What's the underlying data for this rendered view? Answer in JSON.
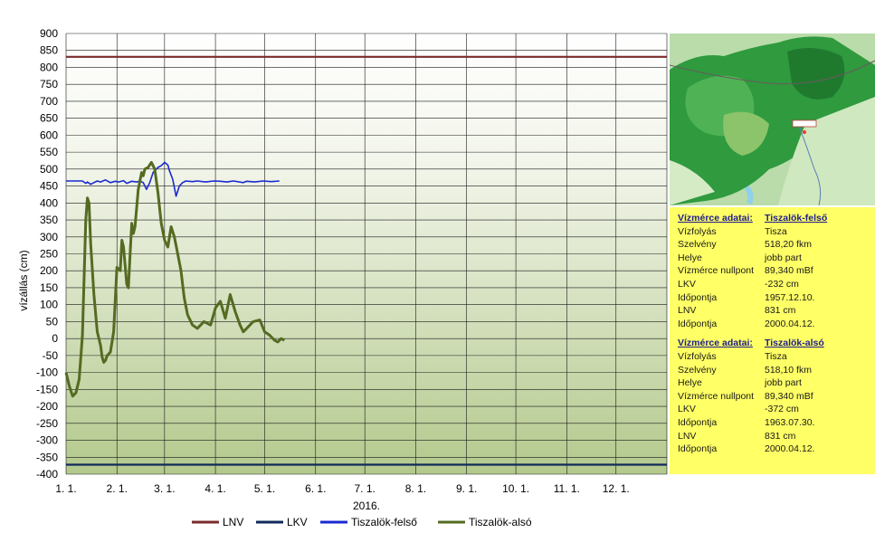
{
  "chart_data": {
    "type": "line",
    "xlabel": "2016.",
    "ylabel": "vízállás (cm)",
    "ylim": [
      -400,
      900
    ],
    "yticks": [
      900,
      850,
      800,
      750,
      700,
      650,
      600,
      550,
      500,
      450,
      400,
      350,
      300,
      250,
      200,
      150,
      100,
      50,
      0,
      -50,
      -100,
      -150,
      -200,
      -250,
      -300,
      -350,
      -400
    ],
    "xticks": [
      "1. 1.",
      "2. 1.",
      "3. 1.",
      "4. 1.",
      "5. 1.",
      "6. 1.",
      "7. 1.",
      "8. 1.",
      "9. 1.",
      "10. 1.",
      "11. 1.",
      "12. 1."
    ],
    "x_unit": "day of year 2016 (0 = Jan 1)",
    "grid": true,
    "legend_position": "bottom",
    "series": [
      {
        "name": "LNV",
        "color": "#7b2b2b",
        "x": [
          0,
          366
        ],
        "y": [
          831,
          831
        ]
      },
      {
        "name": "LKV",
        "color": "#102a5a",
        "x": [
          0,
          366
        ],
        "y": [
          -372,
          -372
        ]
      },
      {
        "name": "Tiszalök-felső",
        "color": "#1a2ad0",
        "x": [
          0,
          10,
          12,
          13,
          15,
          17,
          19,
          21,
          24,
          27,
          30,
          32,
          35,
          37,
          40,
          43,
          45,
          47,
          49,
          51,
          53,
          55,
          56,
          58,
          60,
          62,
          63,
          65,
          67,
          69,
          71,
          73,
          77,
          80,
          85,
          90,
          94,
          98,
          102,
          108,
          110,
          115,
          120,
          125,
          130
        ],
        "y": [
          465,
          465,
          458,
          462,
          455,
          460,
          465,
          462,
          468,
          460,
          464,
          462,
          466,
          458,
          464,
          462,
          465,
          460,
          440,
          460,
          490,
          500,
          505,
          510,
          520,
          512,
          495,
          470,
          420,
          450,
          460,
          465,
          463,
          465,
          462,
          465,
          464,
          462,
          465,
          460,
          464,
          462,
          465,
          463,
          465
        ]
      },
      {
        "name": "Tiszalök-alsó",
        "color": "#556b22",
        "x": [
          0,
          2,
          4,
          6,
          8,
          10,
          12,
          13,
          14,
          15,
          17,
          19,
          21,
          22,
          23,
          24,
          25,
          27,
          29,
          31,
          33,
          34,
          35,
          37,
          38,
          39,
          40,
          41,
          42,
          44,
          46,
          47,
          48,
          50,
          52,
          54,
          56,
          58,
          60,
          62,
          63,
          64,
          66,
          68,
          70,
          71,
          72,
          74,
          77,
          80,
          84,
          88,
          91,
          94,
          97,
          100,
          103,
          106,
          108,
          110,
          114,
          118,
          121,
          124,
          127,
          129,
          131,
          133
        ],
        "y": [
          -100,
          -140,
          -170,
          -160,
          -120,
          10,
          350,
          415,
          400,
          280,
          130,
          20,
          -20,
          -55,
          -70,
          -65,
          -50,
          -40,
          20,
          210,
          200,
          290,
          270,
          160,
          150,
          250,
          340,
          310,
          330,
          440,
          490,
          480,
          500,
          505,
          520,
          500,
          430,
          340,
          290,
          270,
          300,
          330,
          300,
          250,
          200,
          160,
          120,
          70,
          40,
          30,
          50,
          40,
          90,
          110,
          60,
          130,
          80,
          40,
          20,
          30,
          50,
          55,
          20,
          10,
          -5,
          -10,
          0,
          -5
        ]
      }
    ]
  },
  "info": {
    "blocks": [
      {
        "title": "Vízmérce adatai:",
        "station": "Tiszalök-felső",
        "rows": [
          {
            "k": "Vízfolyás",
            "v": "Tisza"
          },
          {
            "k": "Szelvény",
            "v": "518,20 fkm"
          },
          {
            "k": "Helye",
            "v": "jobb part"
          },
          {
            "k": "Vízmérce nullpont",
            "v": "89,340 mBf"
          },
          {
            "k": "LKV",
            "v": "-232 cm"
          },
          {
            "k": "Időpontja",
            "v": "1957.12.10."
          },
          {
            "k": "LNV",
            "v": "831 cm"
          },
          {
            "k": "Időpontja",
            "v": "2000.04.12."
          }
        ]
      },
      {
        "title": "Vízmérce adatai:",
        "station": "Tiszalök-alsó",
        "rows": [
          {
            "k": "Vízfolyás",
            "v": "Tisza"
          },
          {
            "k": "Szelvény",
            "v": "518,10 fkm"
          },
          {
            "k": "Helye",
            "v": "jobb part"
          },
          {
            "k": "Vízmérce nullpont",
            "v": "89,340 mBf"
          },
          {
            "k": "LKV",
            "v": "-372 cm"
          },
          {
            "k": "Időpontja",
            "v": "1963.07.30."
          },
          {
            "k": "LNV",
            "v": "831 cm"
          },
          {
            "k": "Időpontja",
            "v": "2000.04.12."
          }
        ]
      }
    ]
  }
}
